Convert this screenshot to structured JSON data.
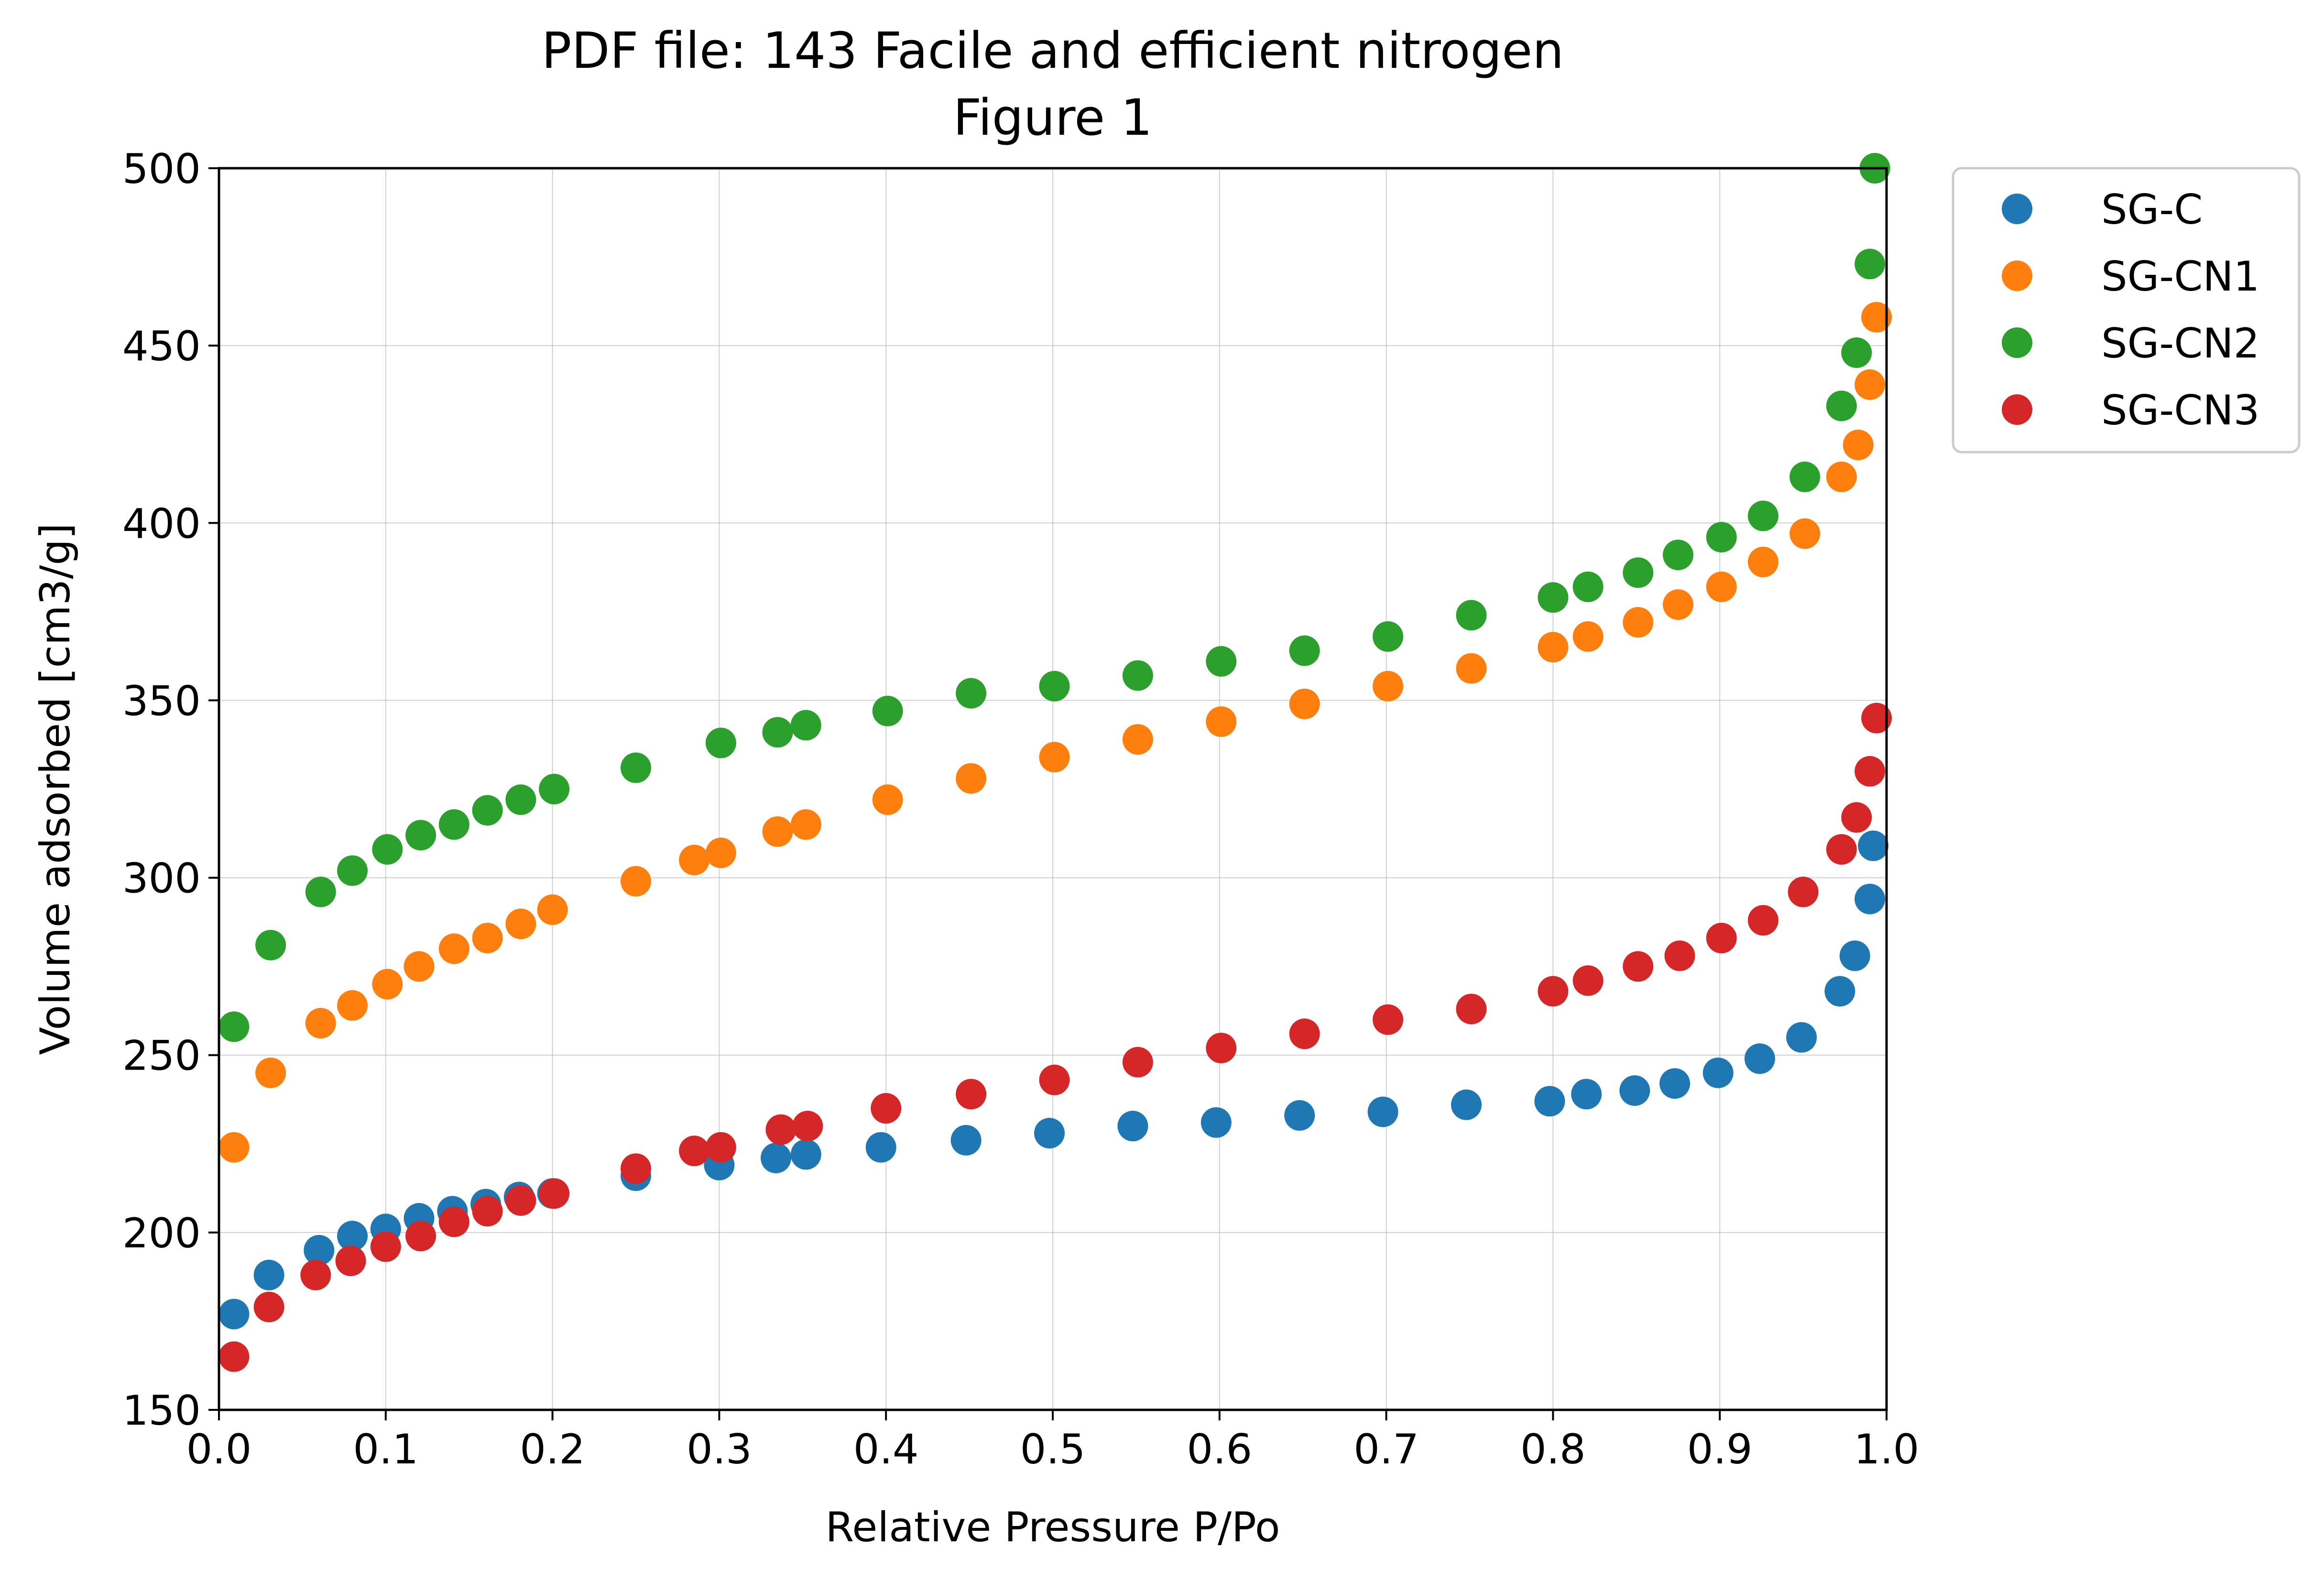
{
  "chart_data": {
    "type": "scatter",
    "title": "PDF file: 143 Facile and efficient nitrogen\nFigure 1",
    "xlabel": "Relative Pressure P/Po",
    "ylabel": "Volume adsorbed [cm3/g]",
    "xlim": [
      0.0,
      1.0
    ],
    "ylim": [
      150,
      500
    ],
    "xticks": [
      "0.0",
      "0.1",
      "0.2",
      "0.3",
      "0.4",
      "0.5",
      "0.6",
      "0.7",
      "0.8",
      "0.9",
      "1.0"
    ],
    "yticks": [
      "150",
      "200",
      "250",
      "300",
      "350",
      "400",
      "450",
      "500"
    ],
    "grid": true,
    "legend_position": "outside-right-top",
    "series": [
      {
        "name": "SG-C",
        "color": "#1f77b4",
        "points": [
          [
            0.009,
            177
          ],
          [
            0.03,
            188
          ],
          [
            0.06,
            195
          ],
          [
            0.08,
            199
          ],
          [
            0.1,
            201
          ],
          [
            0.12,
            204
          ],
          [
            0.14,
            206
          ],
          [
            0.16,
            208
          ],
          [
            0.18,
            210
          ],
          [
            0.2,
            211
          ],
          [
            0.25,
            216
          ],
          [
            0.3,
            219
          ],
          [
            0.334,
            221
          ],
          [
            0.352,
            222
          ],
          [
            0.397,
            224
          ],
          [
            0.448,
            226
          ],
          [
            0.498,
            228
          ],
          [
            0.548,
            230
          ],
          [
            0.598,
            231
          ],
          [
            0.648,
            233
          ],
          [
            0.698,
            234
          ],
          [
            0.748,
            236
          ],
          [
            0.798,
            237
          ],
          [
            0.82,
            239
          ],
          [
            0.849,
            240
          ],
          [
            0.873,
            242
          ],
          [
            0.899,
            245
          ],
          [
            0.924,
            249
          ],
          [
            0.949,
            255
          ],
          [
            0.972,
            268
          ],
          [
            0.981,
            278
          ],
          [
            0.99,
            294
          ],
          [
            0.992,
            309
          ]
        ]
      },
      {
        "name": "SG-CN1",
        "color": "#ff7f0e",
        "points": [
          [
            0.009,
            224
          ],
          [
            0.031,
            245
          ],
          [
            0.061,
            259
          ],
          [
            0.08,
            264
          ],
          [
            0.101,
            270
          ],
          [
            0.12,
            275
          ],
          [
            0.141,
            280
          ],
          [
            0.161,
            283
          ],
          [
            0.181,
            287
          ],
          [
            0.2,
            291
          ],
          [
            0.25,
            299
          ],
          [
            0.285,
            305
          ],
          [
            0.301,
            307
          ],
          [
            0.335,
            313
          ],
          [
            0.352,
            315
          ],
          [
            0.401,
            322
          ],
          [
            0.451,
            328
          ],
          [
            0.501,
            334
          ],
          [
            0.551,
            339
          ],
          [
            0.601,
            344
          ],
          [
            0.651,
            349
          ],
          [
            0.701,
            354
          ],
          [
            0.751,
            359
          ],
          [
            0.8,
            365
          ],
          [
            0.821,
            368
          ],
          [
            0.851,
            372
          ],
          [
            0.875,
            377
          ],
          [
            0.901,
            382
          ],
          [
            0.926,
            389
          ],
          [
            0.951,
            397
          ],
          [
            0.973,
            413
          ],
          [
            0.983,
            422
          ],
          [
            0.99,
            439
          ],
          [
            0.994,
            458
          ]
        ]
      },
      {
        "name": "SG-CN2",
        "color": "#2ca02c",
        "points": [
          [
            0.009,
            258
          ],
          [
            0.031,
            281
          ],
          [
            0.061,
            296
          ],
          [
            0.08,
            302
          ],
          [
            0.101,
            308
          ],
          [
            0.121,
            312
          ],
          [
            0.141,
            315
          ],
          [
            0.161,
            319
          ],
          [
            0.181,
            322
          ],
          [
            0.201,
            325
          ],
          [
            0.25,
            331
          ],
          [
            0.301,
            338
          ],
          [
            0.335,
            341
          ],
          [
            0.352,
            343
          ],
          [
            0.401,
            347
          ],
          [
            0.451,
            352
          ],
          [
            0.501,
            354
          ],
          [
            0.551,
            357
          ],
          [
            0.601,
            361
          ],
          [
            0.651,
            364
          ],
          [
            0.701,
            368
          ],
          [
            0.751,
            374
          ],
          [
            0.8,
            379
          ],
          [
            0.821,
            382
          ],
          [
            0.851,
            386
          ],
          [
            0.875,
            391
          ],
          [
            0.901,
            396
          ],
          [
            0.926,
            402
          ],
          [
            0.951,
            413
          ],
          [
            0.973,
            433
          ],
          [
            0.982,
            448
          ],
          [
            0.99,
            473
          ],
          [
            0.993,
            500
          ]
        ]
      },
      {
        "name": "SG-CN3",
        "color": "#d62728",
        "points": [
          [
            0.009,
            165
          ],
          [
            0.03,
            179
          ],
          [
            0.058,
            188
          ],
          [
            0.079,
            192
          ],
          [
            0.1,
            196
          ],
          [
            0.121,
            199
          ],
          [
            0.141,
            203
          ],
          [
            0.161,
            206
          ],
          [
            0.181,
            209
          ],
          [
            0.201,
            211
          ],
          [
            0.25,
            218
          ],
          [
            0.285,
            223
          ],
          [
            0.301,
            224
          ],
          [
            0.337,
            229
          ],
          [
            0.353,
            230
          ],
          [
            0.4,
            235
          ],
          [
            0.451,
            239
          ],
          [
            0.501,
            243
          ],
          [
            0.551,
            248
          ],
          [
            0.601,
            252
          ],
          [
            0.651,
            256
          ],
          [
            0.701,
            260
          ],
          [
            0.751,
            263
          ],
          [
            0.8,
            268
          ],
          [
            0.821,
            271
          ],
          [
            0.851,
            275
          ],
          [
            0.876,
            278
          ],
          [
            0.901,
            283
          ],
          [
            0.926,
            288
          ],
          [
            0.95,
            296
          ],
          [
            0.973,
            308
          ],
          [
            0.982,
            317
          ],
          [
            0.99,
            330
          ],
          [
            0.994,
            345
          ]
        ]
      }
    ]
  }
}
